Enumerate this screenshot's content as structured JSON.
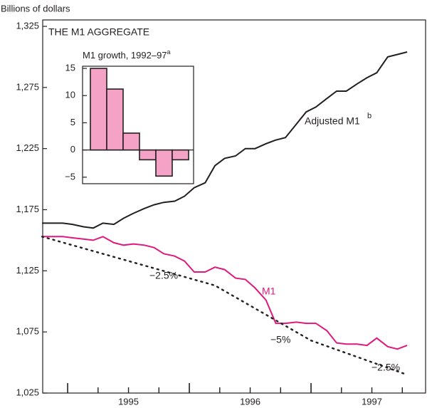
{
  "chart_data": [
    {
      "type": "line",
      "title": "THE M1 AGGREGATE",
      "y_label": "Billions of dollars",
      "xlim": [
        1994.795,
        1997.953
      ],
      "xticks": [
        {
          "value": 1995.5,
          "label": "1995"
        },
        {
          "value": 1996.5,
          "label": "1996"
        },
        {
          "value": 1997.5,
          "label": "1997"
        }
      ],
      "xtick_marks": [
        1995,
        1995.25,
        1995.5,
        1995.75,
        1996,
        1996.25,
        1996.5,
        1996.75,
        1997,
        1997.25,
        1997.5,
        1997.75
      ],
      "ylim": [
        1025,
        1325
      ],
      "yticks": [
        {
          "value": 1025,
          "label": "1,025"
        },
        {
          "value": 1075,
          "label": "1,075"
        },
        {
          "value": 1125,
          "label": "1,125"
        },
        {
          "value": 1175,
          "label": "1,175"
        },
        {
          "value": 1225,
          "label": "1,225"
        },
        {
          "value": 1275,
          "label": "1,275"
        },
        {
          "value": 1325,
          "label": "1,325"
        }
      ],
      "x": [
        1994.79,
        1994.88,
        1994.96,
        1995.04,
        1995.13,
        1995.21,
        1995.29,
        1995.38,
        1995.46,
        1995.54,
        1995.63,
        1995.71,
        1995.79,
        1995.88,
        1995.96,
        1996.04,
        1996.13,
        1996.21,
        1996.29,
        1996.38,
        1996.46,
        1996.54,
        1996.63,
        1996.71,
        1996.79,
        1996.88,
        1996.96,
        1997.04,
        1997.13,
        1997.21,
        1997.29,
        1997.38,
        1997.46,
        1997.54,
        1997.63,
        1997.71,
        1997.79
      ],
      "series": [
        {
          "name": "Adjusted M1",
          "color": "#231f20",
          "values": [
            1164,
            1164,
            1164,
            1163,
            1161,
            1160,
            1164,
            1163,
            1168,
            1172,
            1176,
            1179,
            1181,
            1182,
            1186,
            1193,
            1197,
            1211,
            1217,
            1219,
            1225,
            1225,
            1229,
            1232,
            1234,
            1245,
            1255,
            1259,
            1266,
            1272,
            1272,
            1278,
            1283,
            1287,
            1300,
            1302,
            1304
          ]
        },
        {
          "name": "M1",
          "color": "#e0197d",
          "values": [
            1153,
            1153,
            1153,
            1152,
            1151,
            1150,
            1153,
            1148,
            1146,
            1147,
            1146,
            1144,
            1139,
            1137,
            1133,
            1124,
            1124,
            1128,
            1126,
            1119,
            1118,
            1111,
            1101,
            1082,
            1082,
            1083,
            1082,
            1082,
            1076,
            1066,
            1065,
            1065,
            1064,
            1070,
            1063,
            1061,
            1064
          ]
        },
        {
          "color": "#231f20",
          "dashed": true,
          "x": [
            1994.79,
            1996.21,
            1997.0,
            1997.79
          ],
          "values": [
            1153,
            1113,
            1068,
            1040
          ]
        }
      ],
      "annotations": [
        "b",
        "−2.5%",
        "−5%",
        "−2.5%"
      ]
    },
    {
      "type": "bar",
      "title": "M1 growth, 1992–97",
      "title_sup": "a",
      "categories": [
        null,
        null,
        null,
        null,
        null,
        null
      ],
      "values": [
        15,
        11.2,
        3.1,
        -1.8,
        -4.8,
        -1.8
      ],
      "color": "#f4a3c6",
      "ylim": [
        -6.2,
        15.4
      ],
      "yticks": [
        {
          "value": -5,
          "label": "−5"
        },
        0,
        5,
        10,
        15
      ]
    }
  ]
}
